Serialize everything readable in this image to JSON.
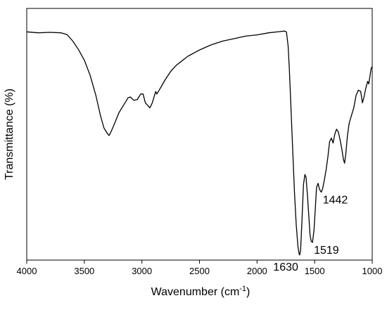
{
  "chart_data": {
    "type": "line",
    "title": "",
    "xlabel": "Wavenumber (cm",
    "xlabel_superscript": "-1",
    "xlabel_close": ")",
    "ylabel": "Transmittance (%)",
    "xlim": [
      4000,
      1000
    ],
    "x_reversed": true,
    "ylim": [
      0,
      100
    ],
    "y_tick_labels_shown": false,
    "grid": false,
    "legend": "none",
    "line_color": "#000000",
    "xticks": [
      4000,
      3500,
      3000,
      2500,
      2000,
      1500,
      1000
    ],
    "series": [
      {
        "points": [
          [
            4000,
            90.7
          ],
          [
            3900,
            90.3
          ],
          [
            3800,
            90.5
          ],
          [
            3700,
            90.3
          ],
          [
            3650,
            89.6
          ],
          [
            3600,
            87.0
          ],
          [
            3550,
            83.6
          ],
          [
            3500,
            79.5
          ],
          [
            3450,
            73.5
          ],
          [
            3400,
            65.5
          ],
          [
            3360,
            57.5
          ],
          [
            3330,
            52.5
          ],
          [
            3300,
            50.3
          ],
          [
            3285,
            49.5
          ],
          [
            3270,
            50.8
          ],
          [
            3240,
            54.0
          ],
          [
            3200,
            58.5
          ],
          [
            3160,
            61.5
          ],
          [
            3120,
            64.5
          ],
          [
            3100,
            64.8
          ],
          [
            3070,
            63.5
          ],
          [
            3040,
            63.8
          ],
          [
            3010,
            66.0
          ],
          [
            2990,
            66.0
          ],
          [
            2970,
            62.5
          ],
          [
            2950,
            61.5
          ],
          [
            2930,
            60.5
          ],
          [
            2910,
            62.5
          ],
          [
            2880,
            67.0
          ],
          [
            2870,
            66.0
          ],
          [
            2850,
            67.5
          ],
          [
            2800,
            71.5
          ],
          [
            2750,
            75.0
          ],
          [
            2700,
            77.5
          ],
          [
            2600,
            81.0
          ],
          [
            2500,
            83.5
          ],
          [
            2400,
            85.5
          ],
          [
            2300,
            87.0
          ],
          [
            2200,
            88.0
          ],
          [
            2100,
            89.0
          ],
          [
            2000,
            89.5
          ],
          [
            1900,
            90.3
          ],
          [
            1800,
            90.8
          ],
          [
            1760,
            91.0
          ],
          [
            1745,
            90.7
          ],
          [
            1730,
            85.0
          ],
          [
            1720,
            76.0
          ],
          [
            1705,
            60.0
          ],
          [
            1690,
            43.0
          ],
          [
            1675,
            27.0
          ],
          [
            1660,
            14.0
          ],
          [
            1645,
            5.5
          ],
          [
            1635,
            2.5
          ],
          [
            1630,
            2.0
          ],
          [
            1622,
            4.0
          ],
          [
            1610,
            16.0
          ],
          [
            1597,
            30.0
          ],
          [
            1585,
            34.0
          ],
          [
            1575,
            33.0
          ],
          [
            1563,
            26.0
          ],
          [
            1550,
            17.0
          ],
          [
            1540,
            10.0
          ],
          [
            1530,
            7.5
          ],
          [
            1519,
            7.0
          ],
          [
            1505,
            12.0
          ],
          [
            1495,
            20.0
          ],
          [
            1483,
            29.0
          ],
          [
            1470,
            30.5
          ],
          [
            1460,
            28.5
          ],
          [
            1450,
            27.5
          ],
          [
            1442,
            27.0
          ],
          [
            1430,
            28.5
          ],
          [
            1415,
            32.0
          ],
          [
            1400,
            36.0
          ],
          [
            1385,
            41.0
          ],
          [
            1370,
            47.0
          ],
          [
            1355,
            48.5
          ],
          [
            1340,
            46.5
          ],
          [
            1325,
            50.0
          ],
          [
            1310,
            52.0
          ],
          [
            1295,
            51.0
          ],
          [
            1280,
            48.0
          ],
          [
            1265,
            44.5
          ],
          [
            1250,
            40.0
          ],
          [
            1240,
            38.5
          ],
          [
            1230,
            42.0
          ],
          [
            1215,
            49.5
          ],
          [
            1200,
            54.5
          ],
          [
            1180,
            57.5
          ],
          [
            1160,
            60.5
          ],
          [
            1140,
            65.5
          ],
          [
            1120,
            67.5
          ],
          [
            1100,
            67.0
          ],
          [
            1085,
            62.5
          ],
          [
            1070,
            65.0
          ],
          [
            1055,
            68.5
          ],
          [
            1040,
            71.0
          ],
          [
            1030,
            70.0
          ],
          [
            1020,
            73.0
          ],
          [
            1010,
            76.0
          ],
          [
            1000,
            77.0
          ]
        ]
      }
    ],
    "annotations": [
      {
        "text": "1630",
        "x": 1630,
        "y": 2.0,
        "side": "below-left"
      },
      {
        "text": "1519",
        "x": 1519,
        "y": 7.0,
        "side": "below-right"
      },
      {
        "text": "1442",
        "x": 1442,
        "y": 27.0,
        "side": "below-right"
      }
    ]
  }
}
